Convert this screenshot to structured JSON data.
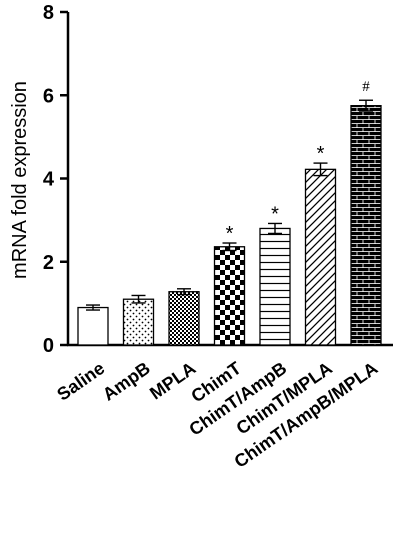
{
  "chart_data": {
    "type": "bar",
    "title": "",
    "xlabel": "",
    "ylabel": "mRNA fold expression",
    "ylim": [
      0,
      8
    ],
    "yticks": [
      "0",
      "2",
      "4",
      "6",
      "8"
    ],
    "grid": false,
    "categories": [
      "Saline",
      "AmpB",
      "MPLA",
      "ChimT",
      "ChimT/AmpB",
      "ChimT/MPLA",
      "ChimT/AmpB/MPLA"
    ],
    "values": [
      0.9,
      1.1,
      1.28,
      2.36,
      2.8,
      4.22,
      5.75
    ],
    "errors": [
      0.06,
      0.09,
      0.07,
      0.09,
      0.12,
      0.15,
      0.13
    ],
    "patterns": [
      "none",
      "sparse-dots",
      "dense-checks",
      "checkerboard",
      "horizontal-lines",
      "diagonal-lines",
      "brick"
    ],
    "annotations": [
      "",
      "",
      "",
      "*",
      "*",
      "*",
      "#"
    ]
  }
}
